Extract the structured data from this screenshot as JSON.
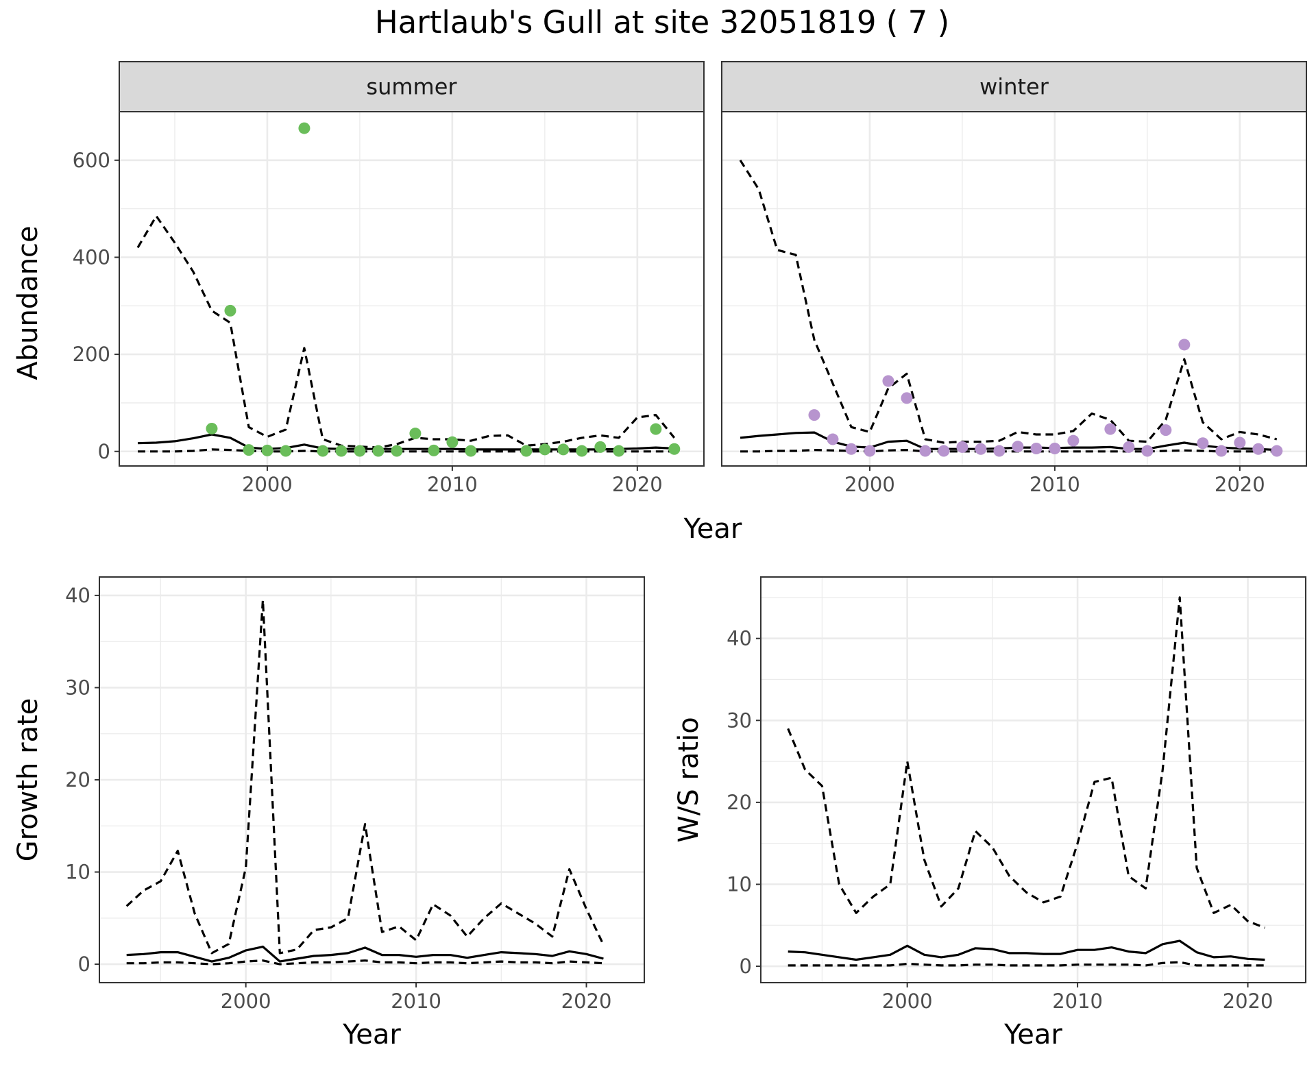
{
  "title": "Hartlaub's Gull at site 32051819 ( 7 )",
  "colors": {
    "summer_points": "#6abd5a",
    "winter_points": "#b794ce",
    "lines": "#000000",
    "strip_fill": "#d9d9d9",
    "grid": "#ebebeb"
  },
  "chart_data": [
    {
      "type": "scatter",
      "facet": "summer",
      "xlabel": "Year",
      "ylabel": "Abundance",
      "xlim": [
        1992,
        2023.6
      ],
      "ylim": [
        -30,
        700
      ],
      "xticks": [
        2000,
        2010,
        2020
      ],
      "yticks": [
        0,
        200,
        400,
        600
      ],
      "grid": true,
      "points": {
        "x": [
          1997,
          1998,
          1999,
          2000,
          2001,
          2002,
          2003,
          2004,
          2005,
          2006,
          2007,
          2008,
          2009,
          2010,
          2011,
          2014,
          2015,
          2016,
          2017,
          2018,
          2019,
          2021,
          2022
        ],
        "y": [
          47,
          290,
          3,
          2,
          1,
          666,
          1,
          1,
          1,
          1,
          1,
          37,
          2,
          19,
          1,
          1,
          4,
          4,
          1,
          9,
          1,
          46,
          5
        ]
      },
      "series": [
        {
          "style": "solid",
          "x": [
            1993,
            1994,
            1995,
            1996,
            1997,
            1998,
            1999,
            2000,
            2001,
            2002,
            2003,
            2004,
            2005,
            2006,
            2007,
            2008,
            2009,
            2010,
            2011,
            2012,
            2013,
            2014,
            2015,
            2016,
            2017,
            2018,
            2019,
            2020,
            2021,
            2022
          ],
          "values": [
            17,
            18,
            21,
            27,
            35,
            28,
            8,
            5,
            7,
            14,
            6,
            5,
            5,
            5,
            5,
            5,
            5,
            5,
            4,
            4,
            4,
            4,
            4,
            4,
            4,
            4,
            5,
            6,
            8,
            6
          ]
        },
        {
          "style": "dashed",
          "x": [
            1993,
            1994,
            1995,
            1996,
            1997,
            1998,
            1999,
            2000,
            2001,
            2002,
            2003,
            2004,
            2005,
            2006,
            2007,
            2008,
            2009,
            2010,
            2011,
            2012,
            2013,
            2014,
            2015,
            2016,
            2017,
            2018,
            2019,
            2020,
            2021,
            2022
          ],
          "values": [
            420,
            485,
            430,
            370,
            290,
            265,
            50,
            30,
            45,
            213,
            25,
            12,
            10,
            8,
            15,
            28,
            25,
            25,
            22,
            32,
            33,
            12,
            15,
            20,
            28,
            33,
            28,
            70,
            75,
            28
          ]
        },
        {
          "style": "dashed",
          "x": [
            1993,
            1994,
            1995,
            1996,
            1997,
            1998,
            1999,
            2000,
            2001,
            2002,
            2003,
            2004,
            2005,
            2006,
            2007,
            2008,
            2009,
            2010,
            2011,
            2012,
            2013,
            2014,
            2015,
            2016,
            2017,
            2018,
            2019,
            2020,
            2021,
            2022
          ],
          "values": [
            0,
            0,
            0,
            1,
            4,
            3,
            1,
            0,
            0,
            1,
            0,
            0,
            0,
            0,
            0,
            0,
            0,
            0,
            0,
            0,
            0,
            0,
            0,
            0,
            0,
            0,
            0,
            0,
            0,
            0
          ]
        }
      ]
    },
    {
      "type": "scatter",
      "facet": "winter",
      "xlabel": "Year",
      "ylabel": "Abundance",
      "xlim": [
        1992,
        2023.6
      ],
      "ylim": [
        -30,
        700
      ],
      "xticks": [
        2000,
        2010,
        2020
      ],
      "yticks": [
        0,
        200,
        400,
        600
      ],
      "grid": true,
      "points": {
        "x": [
          1997,
          1998,
          1999,
          2000,
          2001,
          2002,
          2003,
          2004,
          2005,
          2006,
          2007,
          2008,
          2009,
          2010,
          2011,
          2013,
          2014,
          2015,
          2016,
          2017,
          2018,
          2019,
          2020,
          2021,
          2022
        ],
        "y": [
          75,
          25,
          5,
          1,
          145,
          110,
          1,
          1,
          9,
          5,
          1,
          10,
          6,
          6,
          22,
          46,
          9,
          1,
          44,
          220,
          17,
          1,
          18,
          5,
          1
        ]
      },
      "series": [
        {
          "style": "solid",
          "x": [
            1993,
            1994,
            1995,
            1996,
            1997,
            1998,
            1999,
            2000,
            2001,
            2002,
            2003,
            2004,
            2005,
            2006,
            2007,
            2008,
            2009,
            2010,
            2011,
            2012,
            2013,
            2014,
            2015,
            2016,
            2017,
            2018,
            2019,
            2020,
            2021,
            2022
          ],
          "values": [
            28,
            32,
            35,
            38,
            39,
            20,
            10,
            8,
            20,
            22,
            5,
            5,
            5,
            5,
            6,
            8,
            8,
            7,
            8,
            8,
            9,
            5,
            5,
            12,
            18,
            12,
            8,
            6,
            5,
            3
          ]
        },
        {
          "style": "dashed",
          "x": [
            1993,
            1994,
            1995,
            1996,
            1997,
            1998,
            1999,
            2000,
            2001,
            2002,
            2003,
            2004,
            2005,
            2006,
            2007,
            2008,
            2009,
            2010,
            2011,
            2012,
            2013,
            2014,
            2015,
            2016,
            2017,
            2018,
            2019,
            2020,
            2021,
            2022
          ],
          "values": [
            600,
            540,
            415,
            405,
            230,
            140,
            50,
            40,
            130,
            160,
            25,
            18,
            20,
            20,
            22,
            40,
            35,
            35,
            42,
            78,
            65,
            22,
            20,
            65,
            190,
            60,
            25,
            40,
            35,
            25
          ]
        },
        {
          "style": "dashed",
          "x": [
            1993,
            1994,
            1995,
            1996,
            1997,
            1998,
            1999,
            2000,
            2001,
            2002,
            2003,
            2004,
            2005,
            2006,
            2007,
            2008,
            2009,
            2010,
            2011,
            2012,
            2013,
            2014,
            2015,
            2016,
            2017,
            2018,
            2019,
            2020,
            2021,
            2022
          ],
          "values": [
            0,
            0,
            1,
            1,
            3,
            2,
            1,
            0,
            2,
            3,
            0,
            0,
            0,
            0,
            0,
            0,
            0,
            0,
            0,
            0,
            0,
            0,
            0,
            1,
            2,
            1,
            0,
            0,
            0,
            0
          ]
        }
      ]
    },
    {
      "type": "line",
      "xlabel": "Year",
      "ylabel": "Growth rate",
      "xlim": [
        1991.4,
        2023.4
      ],
      "ylim": [
        -2,
        42
      ],
      "xticks": [
        2000,
        2010,
        2020
      ],
      "yticks": [
        0,
        10,
        20,
        30,
        40
      ],
      "grid": true,
      "series": [
        {
          "style": "solid",
          "x": [
            1993,
            1994,
            1995,
            1996,
            1997,
            1998,
            1999,
            2000,
            2001,
            2002,
            2003,
            2004,
            2005,
            2006,
            2007,
            2008,
            2009,
            2010,
            2011,
            2012,
            2013,
            2014,
            2015,
            2016,
            2017,
            2018,
            2019,
            2020,
            2021
          ],
          "values": [
            1.0,
            1.1,
            1.3,
            1.3,
            0.8,
            0.3,
            0.7,
            1.5,
            1.9,
            0.3,
            0.6,
            0.9,
            1.0,
            1.2,
            1.8,
            1.0,
            1.0,
            0.8,
            1.0,
            1.0,
            0.7,
            1.0,
            1.3,
            1.2,
            1.1,
            0.9,
            1.4,
            1.1,
            0.6
          ]
        },
        {
          "style": "dashed",
          "x": [
            1993,
            1994,
            1995,
            1996,
            1997,
            1998,
            1999,
            2000,
            2001,
            2002,
            2003,
            2004,
            2005,
            2006,
            2007,
            2008,
            2009,
            2010,
            2011,
            2012,
            2013,
            2014,
            2015,
            2016,
            2017,
            2018,
            2019,
            2020,
            2021
          ],
          "values": [
            6.3,
            8.0,
            9.0,
            12.3,
            5.5,
            1.2,
            2.2,
            10.5,
            39.5,
            1.2,
            1.6,
            3.7,
            4.0,
            5.0,
            15.2,
            3.5,
            4.1,
            2.6,
            6.5,
            5.3,
            3.0,
            5.0,
            6.6,
            5.5,
            4.4,
            3.0,
            10.3,
            6.0,
            2.1
          ]
        },
        {
          "style": "dashed",
          "x": [
            1993,
            1994,
            1995,
            1996,
            1997,
            1998,
            1999,
            2000,
            2001,
            2002,
            2003,
            2004,
            2005,
            2006,
            2007,
            2008,
            2009,
            2010,
            2011,
            2012,
            2013,
            2014,
            2015,
            2016,
            2017,
            2018,
            2019,
            2020,
            2021
          ],
          "values": [
            0.1,
            0.1,
            0.2,
            0.2,
            0.1,
            0.0,
            0.1,
            0.3,
            0.4,
            0.0,
            0.1,
            0.2,
            0.2,
            0.3,
            0.4,
            0.2,
            0.2,
            0.1,
            0.2,
            0.2,
            0.1,
            0.2,
            0.3,
            0.2,
            0.2,
            0.1,
            0.3,
            0.2,
            0.1
          ]
        }
      ]
    },
    {
      "type": "line",
      "xlabel": "Year",
      "ylabel": "W/S ratio",
      "xlim": [
        1991.4,
        2023.4
      ],
      "ylim": [
        -2,
        47.5
      ],
      "xticks": [
        2000,
        2010,
        2020
      ],
      "yticks": [
        0,
        10,
        20,
        30,
        40
      ],
      "grid": true,
      "series": [
        {
          "style": "solid",
          "x": [
            1993,
            1994,
            1995,
            1996,
            1997,
            1998,
            1999,
            2000,
            2001,
            2002,
            2003,
            2004,
            2005,
            2006,
            2007,
            2008,
            2009,
            2010,
            2011,
            2012,
            2013,
            2014,
            2015,
            2016,
            2017,
            2018,
            2019,
            2020,
            2021
          ],
          "values": [
            1.8,
            1.7,
            1.4,
            1.1,
            0.8,
            1.1,
            1.4,
            2.5,
            1.4,
            1.1,
            1.4,
            2.2,
            2.1,
            1.6,
            1.6,
            1.5,
            1.5,
            2.0,
            2.0,
            2.3,
            1.8,
            1.6,
            2.7,
            3.1,
            1.7,
            1.1,
            1.2,
            0.9,
            0.8
          ]
        },
        {
          "style": "dashed",
          "x": [
            1993,
            1994,
            1995,
            1996,
            1997,
            1998,
            1999,
            2000,
            2001,
            2002,
            2003,
            2004,
            2005,
            2006,
            2007,
            2008,
            2009,
            2010,
            2011,
            2012,
            2013,
            2014,
            2015,
            2016,
            2017,
            2018,
            2019,
            2020,
            2021
          ],
          "values": [
            29,
            24,
            22,
            10,
            6.5,
            8.5,
            10,
            25,
            13,
            7.3,
            9.5,
            16.5,
            14.5,
            11,
            9,
            7.8,
            8.5,
            15,
            22.5,
            23,
            11,
            9.5,
            24,
            45,
            12,
            6.5,
            7.5,
            5.5,
            4.7
          ]
        },
        {
          "style": "dashed",
          "x": [
            1993,
            1994,
            1995,
            1996,
            1997,
            1998,
            1999,
            2000,
            2001,
            2002,
            2003,
            2004,
            2005,
            2006,
            2007,
            2008,
            2009,
            2010,
            2011,
            2012,
            2013,
            2014,
            2015,
            2016,
            2017,
            2018,
            2019,
            2020,
            2021
          ],
          "values": [
            0.1,
            0.1,
            0.1,
            0.1,
            0.1,
            0.1,
            0.1,
            0.3,
            0.2,
            0.1,
            0.1,
            0.2,
            0.2,
            0.1,
            0.1,
            0.1,
            0.1,
            0.2,
            0.2,
            0.2,
            0.2,
            0.1,
            0.4,
            0.5,
            0.1,
            0.1,
            0.1,
            0.1,
            0.1
          ]
        }
      ]
    }
  ]
}
